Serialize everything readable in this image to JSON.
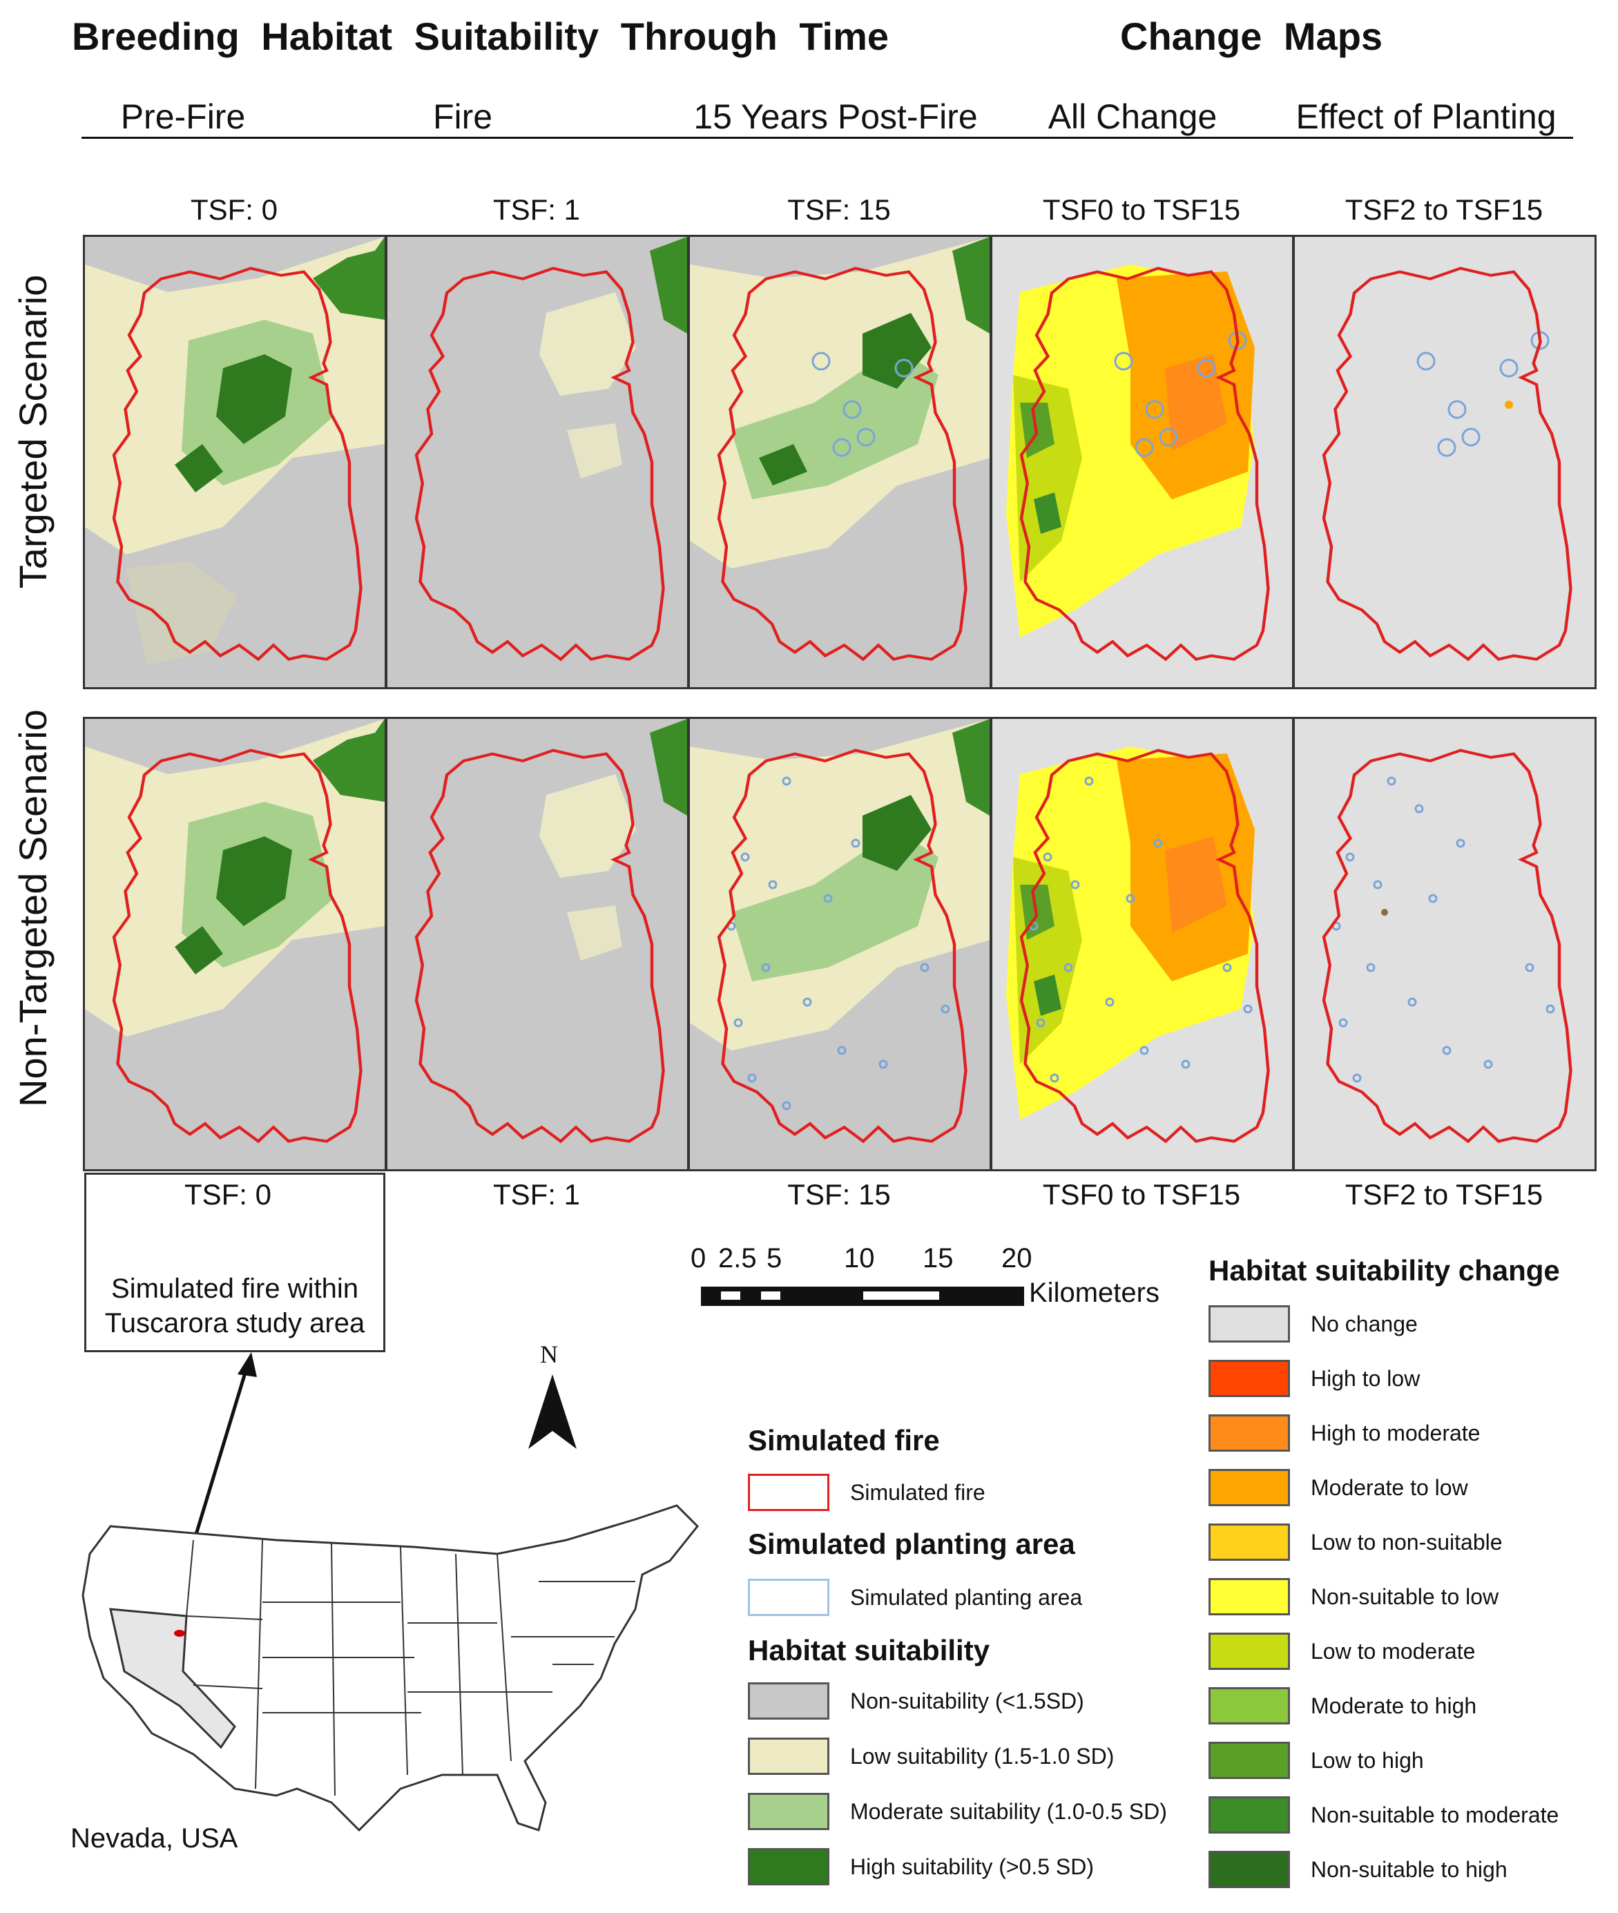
{
  "headers": {
    "left": "Breeding Habitat Suitability Through Time",
    "right": "Change Maps"
  },
  "columns": [
    {
      "title": "Pre-Fire",
      "tsf_top": "TSF: 0",
      "tsf_bottom": "TSF: 0"
    },
    {
      "title": "Fire",
      "tsf_top": "TSF: 1",
      "tsf_bottom": "TSF: 1"
    },
    {
      "title": "15 Years Post-Fire",
      "tsf_top": "TSF: 15",
      "tsf_bottom": "TSF: 15"
    },
    {
      "title": "All Change",
      "tsf_top": "TSF0 to TSF15",
      "tsf_bottom": "TSF0 to TSF15"
    },
    {
      "title": "Effect of Planting",
      "tsf_top": "TSF2 to TSF15",
      "tsf_bottom": "TSF2 to TSF15"
    }
  ],
  "rows": [
    {
      "label": "Targeted Scenario"
    },
    {
      "label": "Non-Targeted Scenario"
    }
  ],
  "inset": {
    "caption_line1": "Simulated fire within",
    "caption_line2": "Tuscarora study area",
    "location": "Nevada, USA",
    "north": "N"
  },
  "scale_bar": {
    "ticks": [
      "0",
      "2.5",
      "5",
      "10",
      "15",
      "20"
    ],
    "unit": "Kilometers"
  },
  "legend_fire": {
    "title": "Simulated fire",
    "item": "Simulated fire",
    "color": "#e02020"
  },
  "legend_planting": {
    "title": "Simulated planting area",
    "item": "Simulated planting area",
    "color": "#9ec3e6"
  },
  "legend_suitability": {
    "title": "Habitat suitability",
    "items": [
      {
        "label": "Non-suitability (<1.5SD)",
        "color": "#c8c8c8"
      },
      {
        "label": "Low suitability (1.5-1.0 SD)",
        "color": "#eeebc4"
      },
      {
        "label": "Moderate suitability (1.0-0.5 SD)",
        "color": "#a8d08d"
      },
      {
        "label": "High suitability (>0.5 SD)",
        "color": "#2f7a1f"
      }
    ]
  },
  "legend_change": {
    "title": "Habitat suitability change",
    "items": [
      {
        "label": "No change",
        "color": "#e0e0e0"
      },
      {
        "label": "High to low",
        "color": "#ff4500"
      },
      {
        "label": "High to moderate",
        "color": "#ff8c1a"
      },
      {
        "label": "Moderate to low",
        "color": "#ffa500"
      },
      {
        "label": "Low to non-suitable",
        "color": "#ffd11a"
      },
      {
        "label": "Non-suitable to low",
        "color": "#ffff33"
      },
      {
        "label": "Low to moderate",
        "color": "#c8dc14"
      },
      {
        "label": "Moderate to high",
        "color": "#8cc83c"
      },
      {
        "label": "Low to high",
        "color": "#5aa028"
      },
      {
        "label": "Non-suitable to moderate",
        "color": "#3c8c28"
      },
      {
        "label": "Non-suitable to high",
        "color": "#2a6e1e"
      }
    ]
  }
}
